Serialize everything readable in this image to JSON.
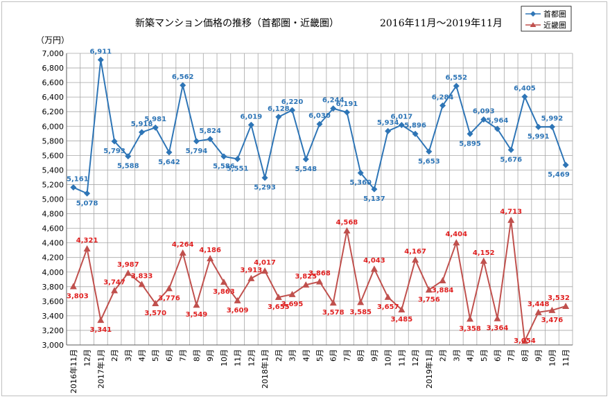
{
  "chart_data": {
    "type": "line",
    "title": "新築マンション価格の推移（首都圏・近畿圏）",
    "period": "2016年11月～2019年11月",
    "ylabel": "（万円）",
    "ylim": [
      3000,
      7000
    ],
    "yticks": [
      "3,000",
      "3,200",
      "3,400",
      "3,600",
      "3,800",
      "4,000",
      "4,200",
      "4,400",
      "4,600",
      "4,800",
      "5,000",
      "5,200",
      "5,400",
      "5,600",
      "5,800",
      "6,000",
      "6,200",
      "6,400",
      "6,600",
      "6,800",
      "7,000"
    ],
    "categories": [
      "2016年11月",
      "12月",
      "2017年1月",
      "2月",
      "3月",
      "4月",
      "5月",
      "6月",
      "7月",
      "8月",
      "9月",
      "10月",
      "11月",
      "12月",
      "2018年1月",
      "2月",
      "3月",
      "4月",
      "5月",
      "6月",
      "7月",
      "8月",
      "9月",
      "10月",
      "11月",
      "12月",
      "2019年1月",
      "2月",
      "3月",
      "4月",
      "5月",
      "6月",
      "7月",
      "8月",
      "9月",
      "10月",
      "11月"
    ],
    "series": [
      {
        "name": "首都圏",
        "color": "#2e75b6",
        "marker": "diamond",
        "values": [
          5161,
          5078,
          6911,
          5793,
          5588,
          5918,
          5981,
          5642,
          6562,
          5794,
          5824,
          5586,
          5551,
          6019,
          5293,
          6128,
          6220,
          5548,
          6030,
          6244,
          6191,
          5360,
          5137,
          5934,
          6017,
          5896,
          5653,
          6284,
          6552,
          5895,
          6093,
          5964,
          5676,
          6405,
          5991,
          5992,
          5469
        ],
        "labels": [
          "5,161",
          "5,078",
          "6,911",
          "5,793",
          "5,588",
          "5,918",
          "5,981",
          "5,642",
          "6,562",
          "5,794",
          "5,824",
          "5,586",
          "5,551",
          "6,019",
          "5,293",
          "6,128",
          "6,220",
          "5,548",
          "6,030",
          "6,244",
          "6,191",
          "5,360",
          "5,137",
          "5,934",
          "6,017",
          "5,896",
          "5,653",
          "6,284",
          "6,552",
          "5,895",
          "6,093",
          "5,964",
          "5,676",
          "6,405",
          "5,991",
          "5,992",
          "5,469"
        ]
      },
      {
        "name": "近畿圏",
        "color": "#c0504d",
        "marker": "triangle",
        "values": [
          3803,
          4321,
          3341,
          3747,
          3987,
          3833,
          3570,
          3776,
          4264,
          3549,
          4186,
          3863,
          3609,
          3913,
          4017,
          3655,
          3695,
          3825,
          3868,
          3578,
          4568,
          3585,
          4043,
          3657,
          3485,
          4167,
          3756,
          3884,
          4404,
          3358,
          4152,
          3364,
          4713,
          3054,
          3448,
          3476,
          3532
        ],
        "labels": [
          "3,803",
          "4,321",
          "3,341",
          "3,747",
          "3,987",
          "3,833",
          "3,570",
          "3,776",
          "4,264",
          "3,549",
          "4,186",
          "3,863",
          "3,609",
          "3,913",
          "4,017",
          "3,655",
          "3,695",
          "3,825",
          "3,868",
          "3,578",
          "4,568",
          "3,585",
          "4,043",
          "3,657",
          "3,485",
          "4,167",
          "3,756",
          "3,884",
          "4,404",
          "3,358",
          "4,152",
          "3,364",
          "4,713",
          "3,054",
          "3,448",
          "3,476",
          "3,532"
        ]
      }
    ],
    "legend": {
      "position": "top-right",
      "entries": [
        "首都圏",
        "近畿圏"
      ]
    },
    "grid": {
      "horizontal": true,
      "vertical": true
    }
  }
}
